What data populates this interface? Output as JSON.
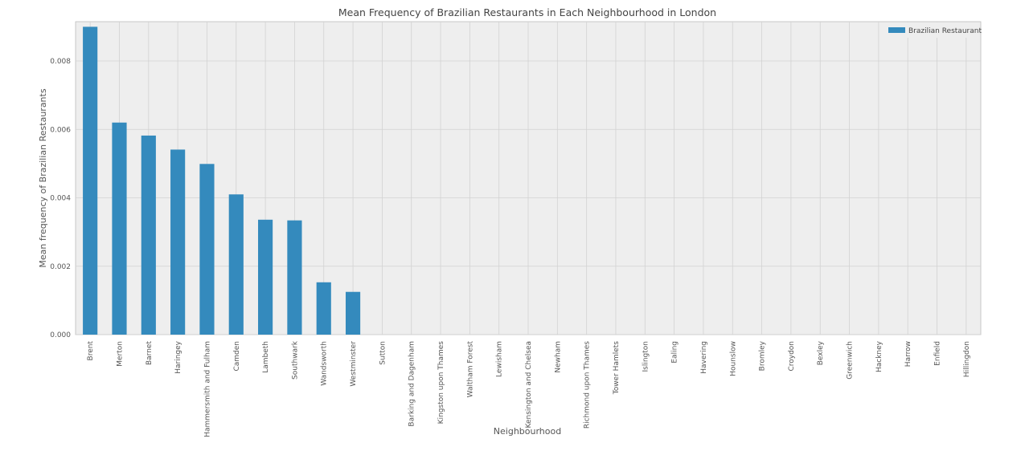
{
  "chart_data": {
    "type": "bar",
    "title": "Mean Frequency of Brazilian Restaurants in Each Neighbourhood in London",
    "xlabel": "Neighbourhood",
    "ylabel": "Mean frequency of Brazilian Restaurants",
    "ylim": [
      0,
      0.00915
    ],
    "yticks": [
      "0.000",
      "0.002",
      "0.004",
      "0.006",
      "0.008"
    ],
    "ytick_values": [
      0,
      0.002,
      0.004,
      0.006,
      0.008
    ],
    "grid": true,
    "legend_position": "top-right",
    "categories": [
      "Brent",
      "Merton",
      "Barnet",
      "Haringey",
      "Hammersmith and Fulham",
      "Camden",
      "Lambeth",
      "Southwark",
      "Wandsworth",
      "Westminster",
      "Sutton",
      "Barking and Dagenham",
      "Kingston upon Thames",
      "Waltham Forest",
      "Lewisham",
      "Kensington and Chelsea",
      "Newham",
      "Richmond upon Thames",
      "Tower Hamlets",
      "Islington",
      "Ealing",
      "Havering",
      "Hounslow",
      "Bromley",
      "Croydon",
      "Bexley",
      "Greenwich",
      "Hackney",
      "Harrow",
      "Enfield",
      "Hillingdon"
    ],
    "series": [
      {
        "name": "Brazilian Restaurant",
        "color": "#348abd",
        "values": [
          0.009,
          0.0062,
          0.00582,
          0.00541,
          0.00499,
          0.0041,
          0.00336,
          0.00334,
          0.00153,
          0.00125,
          0,
          0,
          0,
          0,
          0,
          0,
          0,
          0,
          0,
          0,
          0,
          0,
          0,
          0,
          0,
          0,
          0,
          0,
          0,
          0,
          0
        ]
      }
    ]
  },
  "colors": {
    "plot_background": "#eeeeee",
    "grid": "#d2d2d2",
    "bar": "#348abd"
  }
}
